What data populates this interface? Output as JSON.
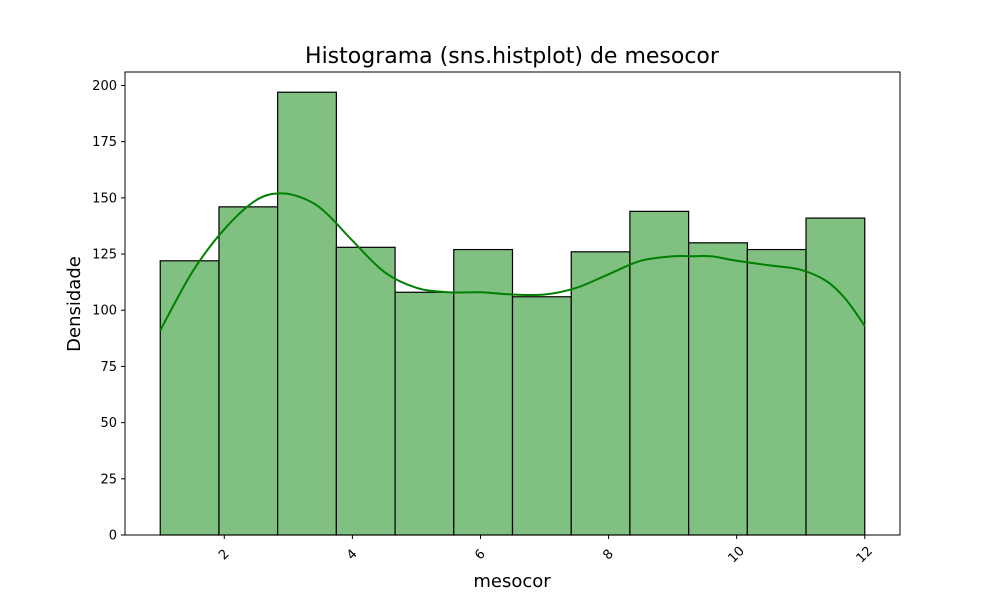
{
  "chart_data": {
    "type": "bar",
    "title": "Histograma (sns.histplot) de mesocor",
    "xlabel": "mesocor",
    "ylabel": "Densidade",
    "xlim": [
      0.45,
      12.55
    ],
    "ylim": [
      0,
      206
    ],
    "xticks": [
      2,
      4,
      6,
      8,
      10,
      12
    ],
    "yticks": [
      0,
      25,
      50,
      75,
      100,
      125,
      150,
      175,
      200
    ],
    "xtick_rotation": 45,
    "bins": [
      {
        "start": 1.0,
        "end": 1.917,
        "count": 122
      },
      {
        "start": 1.917,
        "end": 2.833,
        "count": 146
      },
      {
        "start": 2.833,
        "end": 3.75,
        "count": 197
      },
      {
        "start": 3.75,
        "end": 4.667,
        "count": 128
      },
      {
        "start": 4.667,
        "end": 5.583,
        "count": 108
      },
      {
        "start": 5.583,
        "end": 6.5,
        "count": 127
      },
      {
        "start": 6.5,
        "end": 7.417,
        "count": 106
      },
      {
        "start": 7.417,
        "end": 8.333,
        "count": 126
      },
      {
        "start": 8.333,
        "end": 9.25,
        "count": 144
      },
      {
        "start": 9.25,
        "end": 10.167,
        "count": 130
      },
      {
        "start": 10.167,
        "end": 11.083,
        "count": 127
      },
      {
        "start": 11.083,
        "end": 12.0,
        "count": 141
      }
    ],
    "kde": {
      "x": [
        1.0,
        1.5,
        2.0,
        2.5,
        2.9,
        3.3,
        3.6,
        4.0,
        4.5,
        5.0,
        5.5,
        6.0,
        6.5,
        7.0,
        7.5,
        8.0,
        8.5,
        9.0,
        9.3,
        9.6,
        10.0,
        10.5,
        11.0,
        11.4,
        11.7,
        12.0
      ],
      "y": [
        91,
        117,
        136,
        149,
        152,
        149,
        143,
        131,
        117,
        110,
        108,
        108,
        107,
        107,
        110,
        116,
        122,
        124,
        124,
        124,
        122,
        120,
        118,
        113,
        105,
        93
      ]
    },
    "colors": {
      "bar_fill": "#80c080",
      "bar_edge": "#000000",
      "kde_line": "#008000"
    }
  }
}
